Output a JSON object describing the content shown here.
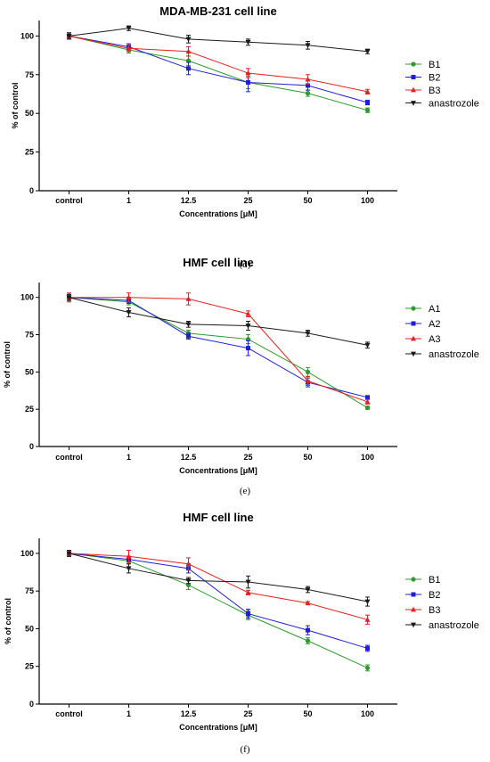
{
  "chart_data": [
    {
      "type": "line",
      "title": "MDA-MB-231 cell line",
      "xlabel": "Concentrations [μM]",
      "ylabel": "% of control",
      "categories": [
        "control",
        "1",
        "12.5",
        "25",
        "50",
        "100"
      ],
      "ylim": [
        0,
        110
      ],
      "yticks": [
        0,
        25,
        50,
        75,
        100
      ],
      "grid": false,
      "legend": "right",
      "caption": "(d)",
      "series": [
        {
          "name": "B1",
          "color": "#2e9a2e",
          "marker": "circle",
          "values": [
            100,
            91,
            84,
            70,
            63,
            52
          ],
          "errors": [
            2,
            2,
            3,
            4,
            2,
            1.5
          ]
        },
        {
          "name": "B2",
          "color": "#1f1fd6",
          "marker": "square",
          "values": [
            100,
            93,
            79,
            70,
            68,
            57
          ],
          "errors": [
            2,
            2,
            4,
            6,
            3,
            1.5
          ]
        },
        {
          "name": "B3",
          "color": "#e8201c",
          "marker": "triangle-up",
          "values": [
            100,
            92,
            90,
            76,
            72,
            64
          ],
          "errors": [
            2,
            2,
            3,
            3,
            3,
            1.5
          ]
        },
        {
          "name": "anastrozole",
          "color": "#1a1a1a",
          "marker": "triangle-down",
          "values": [
            100,
            105,
            98,
            96,
            94,
            90
          ],
          "errors": [
            2,
            1.5,
            2.5,
            2,
            2.5,
            1.5
          ]
        }
      ]
    },
    {
      "type": "line",
      "title": "HMF cell line",
      "xlabel": "Concentrations [μM]",
      "ylabel": "% of control",
      "categories": [
        "control",
        "1",
        "12.5",
        "25",
        "50",
        "100"
      ],
      "ylim": [
        0,
        110
      ],
      "yticks": [
        0,
        25,
        50,
        75,
        100
      ],
      "grid": false,
      "legend": "right",
      "caption": "(e)",
      "series": [
        {
          "name": "A1",
          "color": "#2e9a2e",
          "marker": "circle",
          "values": [
            100,
            97,
            76,
            72,
            50,
            26
          ],
          "errors": [
            2,
            2,
            2,
            3,
            3,
            1
          ]
        },
        {
          "name": "A2",
          "color": "#1f1fd6",
          "marker": "square",
          "values": [
            100,
            98,
            74,
            66,
            43,
            33
          ],
          "errors": [
            2,
            2,
            2,
            5,
            3,
            1
          ]
        },
        {
          "name": "A3",
          "color": "#e8201c",
          "marker": "triangle-up",
          "values": [
            100,
            100,
            99,
            89,
            44,
            30
          ],
          "errors": [
            3,
            3,
            4,
            2,
            3,
            1.5
          ]
        },
        {
          "name": "anastrozole",
          "color": "#1a1a1a",
          "marker": "triangle-down",
          "values": [
            100,
            90,
            82,
            81,
            76,
            68
          ],
          "errors": [
            2,
            3,
            2,
            3,
            2,
            2
          ]
        }
      ]
    },
    {
      "type": "line",
      "title": "HMF cell line",
      "xlabel": "Concentrations [μM]",
      "ylabel": "% of control",
      "categories": [
        "control",
        "1",
        "12.5",
        "25",
        "50",
        "100"
      ],
      "ylim": [
        0,
        110
      ],
      "yticks": [
        0,
        25,
        50,
        75,
        100
      ],
      "grid": false,
      "legend": "right",
      "caption": "(f)",
      "series": [
        {
          "name": "B1",
          "color": "#2e9a2e",
          "marker": "circle",
          "values": [
            100,
            95,
            79,
            59,
            42,
            24
          ],
          "errors": [
            2,
            2,
            3,
            3,
            2,
            2
          ]
        },
        {
          "name": "B2",
          "color": "#1f1fd6",
          "marker": "square",
          "values": [
            100,
            96,
            90,
            60,
            49,
            37
          ],
          "errors": [
            2,
            2,
            3,
            3,
            3,
            2
          ]
        },
        {
          "name": "B3",
          "color": "#e8201c",
          "marker": "triangle-up",
          "values": [
            100,
            98,
            93,
            74,
            67,
            56
          ],
          "errors": [
            2,
            4,
            4,
            1.5,
            1,
            3
          ]
        },
        {
          "name": "anastrozole",
          "color": "#1a1a1a",
          "marker": "triangle-down",
          "values": [
            100,
            90,
            82,
            81,
            76,
            68
          ],
          "errors": [
            2,
            3,
            2,
            4,
            2,
            3
          ]
        }
      ]
    }
  ]
}
